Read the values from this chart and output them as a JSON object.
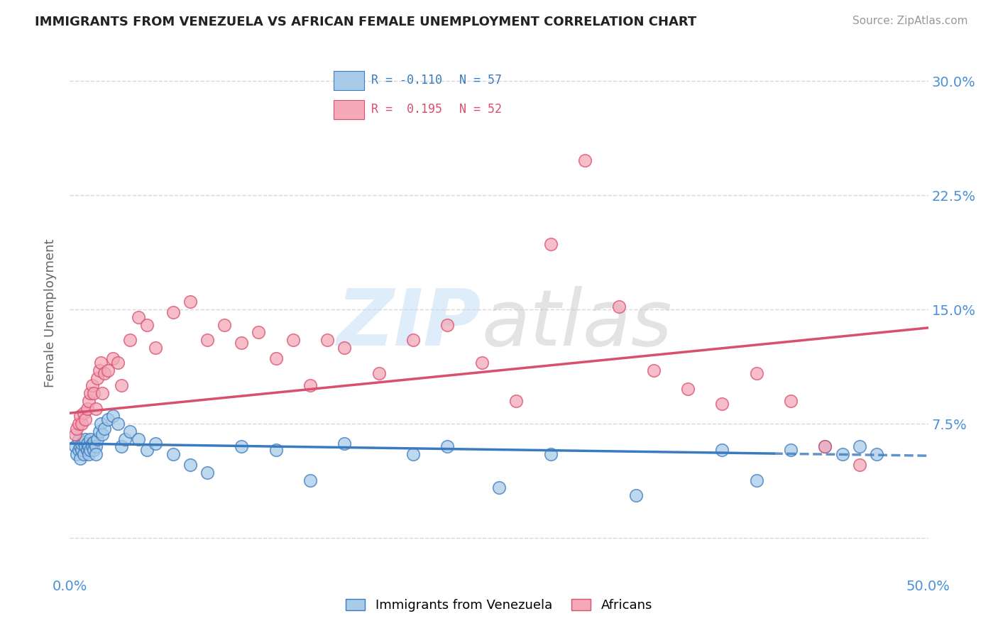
{
  "title": "IMMIGRANTS FROM VENEZUELA VS AFRICAN FEMALE UNEMPLOYMENT CORRELATION CHART",
  "source": "Source: ZipAtlas.com",
  "ylabel": "Female Unemployment",
  "xlim": [
    0.0,
    0.5
  ],
  "ylim": [
    -0.025,
    0.32
  ],
  "yticks": [
    0.0,
    0.075,
    0.15,
    0.225,
    0.3
  ],
  "ytick_labels": [
    "",
    "7.5%",
    "15.0%",
    "22.5%",
    "30.0%"
  ],
  "xticks": [
    0.0,
    0.1,
    0.2,
    0.3,
    0.4,
    0.5
  ],
  "xtick_labels": [
    "0.0%",
    "",
    "",
    "",
    "",
    "50.0%"
  ],
  "series1_label": "Immigrants from Venezuela",
  "series2_label": "Africans",
  "R1": -0.11,
  "N1": 57,
  "R2": 0.195,
  "N2": 52,
  "color1": "#a8cce8",
  "color2": "#f4a8b8",
  "trend1_color": "#3a7abf",
  "trend2_color": "#d94f6e",
  "background_color": "#ffffff",
  "grid_color": "#d8d8d8",
  "axis_color": "#4a90d9",
  "title_color": "#222222",
  "series1_x": [
    0.003,
    0.004,
    0.005,
    0.005,
    0.006,
    0.006,
    0.007,
    0.007,
    0.008,
    0.008,
    0.009,
    0.009,
    0.01,
    0.01,
    0.011,
    0.011,
    0.012,
    0.012,
    0.013,
    0.013,
    0.014,
    0.014,
    0.015,
    0.015,
    0.016,
    0.017,
    0.018,
    0.019,
    0.02,
    0.022,
    0.025,
    0.028,
    0.03,
    0.032,
    0.035,
    0.04,
    0.045,
    0.05,
    0.06,
    0.07,
    0.08,
    0.1,
    0.12,
    0.14,
    0.16,
    0.2,
    0.22,
    0.25,
    0.28,
    0.33,
    0.38,
    0.4,
    0.42,
    0.44,
    0.45,
    0.46,
    0.47
  ],
  "series1_y": [
    0.06,
    0.055,
    0.058,
    0.065,
    0.052,
    0.06,
    0.058,
    0.062,
    0.055,
    0.063,
    0.06,
    0.065,
    0.058,
    0.062,
    0.06,
    0.055,
    0.058,
    0.065,
    0.062,
    0.06,
    0.058,
    0.063,
    0.06,
    0.055,
    0.065,
    0.07,
    0.075,
    0.068,
    0.072,
    0.078,
    0.08,
    0.075,
    0.06,
    0.065,
    0.07,
    0.065,
    0.058,
    0.062,
    0.055,
    0.048,
    0.043,
    0.06,
    0.058,
    0.038,
    0.062,
    0.055,
    0.06,
    0.033,
    0.055,
    0.028,
    0.058,
    0.038,
    0.058,
    0.06,
    0.055,
    0.06,
    0.055
  ],
  "series2_x": [
    0.003,
    0.004,
    0.005,
    0.006,
    0.007,
    0.008,
    0.009,
    0.01,
    0.011,
    0.012,
    0.013,
    0.014,
    0.015,
    0.016,
    0.017,
    0.018,
    0.019,
    0.02,
    0.022,
    0.025,
    0.028,
    0.03,
    0.035,
    0.04,
    0.045,
    0.05,
    0.06,
    0.07,
    0.08,
    0.09,
    0.1,
    0.11,
    0.12,
    0.13,
    0.14,
    0.15,
    0.16,
    0.18,
    0.2,
    0.22,
    0.24,
    0.26,
    0.28,
    0.3,
    0.32,
    0.34,
    0.36,
    0.38,
    0.4,
    0.42,
    0.44,
    0.46
  ],
  "series2_y": [
    0.068,
    0.072,
    0.075,
    0.08,
    0.075,
    0.082,
    0.078,
    0.085,
    0.09,
    0.095,
    0.1,
    0.095,
    0.085,
    0.105,
    0.11,
    0.115,
    0.095,
    0.108,
    0.11,
    0.118,
    0.115,
    0.1,
    0.13,
    0.145,
    0.14,
    0.125,
    0.148,
    0.155,
    0.13,
    0.14,
    0.128,
    0.135,
    0.118,
    0.13,
    0.1,
    0.13,
    0.125,
    0.108,
    0.13,
    0.14,
    0.115,
    0.09,
    0.193,
    0.248,
    0.152,
    0.11,
    0.098,
    0.088,
    0.108,
    0.09,
    0.06,
    0.048
  ],
  "trend1_solid_xlim": [
    0.0,
    0.41
  ],
  "trend1_dashed_xlim": [
    0.41,
    0.5
  ],
  "trend1_start_y": 0.062,
  "trend1_end_y": 0.054,
  "trend2_start_y": 0.082,
  "trend2_end_y": 0.138
}
